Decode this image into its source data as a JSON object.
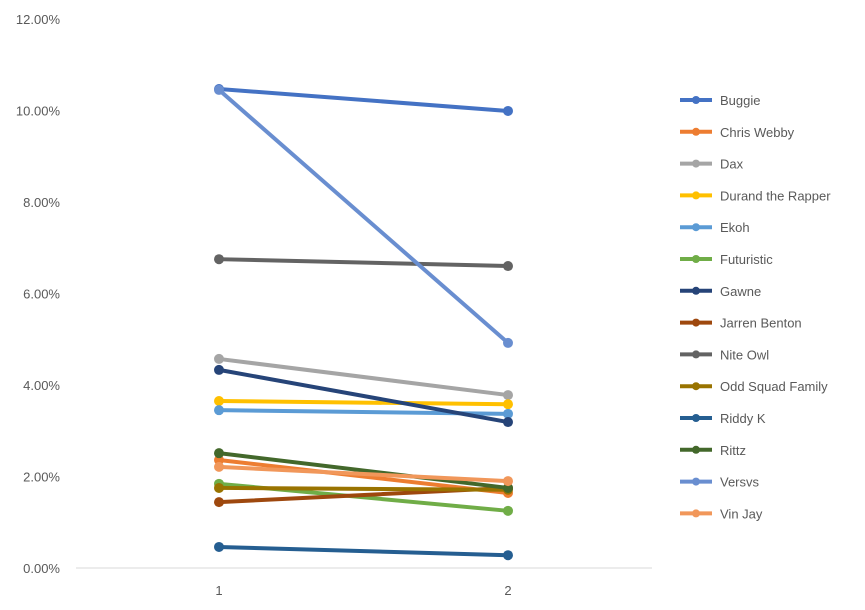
{
  "chart_data": {
    "type": "line",
    "categories": [
      "1",
      "2"
    ],
    "ylim": [
      0,
      12
    ],
    "yticks": [
      "0.00%",
      "2.00%",
      "4.00%",
      "6.00%",
      "8.00%",
      "10.00%",
      "12.00%"
    ],
    "grid": false,
    "legend": "right",
    "series": [
      {
        "name": "Buggie",
        "color": "#4472C4",
        "values": [
          10.47,
          9.99
        ]
      },
      {
        "name": "Chris Webby",
        "color": "#ED7D31",
        "values": [
          2.36,
          1.64
        ]
      },
      {
        "name": "Dax",
        "color": "#A5A5A5",
        "values": [
          4.57,
          3.78
        ]
      },
      {
        "name": "Durand the Rapper",
        "color": "#FFC000",
        "values": [
          3.65,
          3.58
        ]
      },
      {
        "name": "Ekoh",
        "color": "#5B9BD5",
        "values": [
          3.45,
          3.37
        ]
      },
      {
        "name": "Futuristic",
        "color": "#70AD47",
        "values": [
          1.84,
          1.25
        ]
      },
      {
        "name": "Gawne",
        "color": "#264478",
        "values": [
          4.33,
          3.19
        ]
      },
      {
        "name": "Jarren Benton",
        "color": "#9E480E",
        "values": [
          1.44,
          1.75
        ]
      },
      {
        "name": "Nite Owl",
        "color": "#636363",
        "values": [
          6.75,
          6.6
        ]
      },
      {
        "name": "Odd Squad Family",
        "color": "#997300",
        "values": [
          1.75,
          1.71
        ]
      },
      {
        "name": "Riddy K",
        "color": "#255E91",
        "values": [
          0.46,
          0.28
        ]
      },
      {
        "name": "Rittz",
        "color": "#43682B",
        "values": [
          2.51,
          1.75
        ]
      },
      {
        "name": "Versvs",
        "color": "#698ED0",
        "values": [
          10.45,
          4.92
        ]
      },
      {
        "name": "Vin Jay",
        "color": "#F1975A",
        "values": [
          2.21,
          1.9
        ]
      }
    ]
  }
}
